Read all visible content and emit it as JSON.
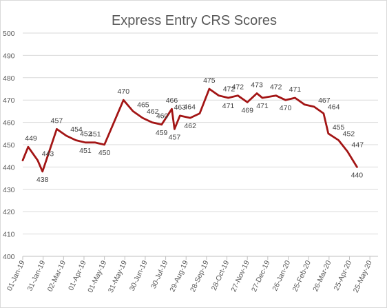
{
  "chart_data": {
    "type": "line",
    "title": "Express Entry CRS Scores",
    "xlabel": "",
    "ylabel": "",
    "ylim": [
      400,
      500
    ],
    "yticks": [
      400,
      410,
      420,
      430,
      440,
      450,
      460,
      470,
      480,
      490,
      500
    ],
    "x_tick_labels": [
      "01-Jan-19",
      "31-Jan-19",
      "02-Mar-19",
      "01-Apr-19",
      "01-May-19",
      "31-May-19",
      "30-Jun-19",
      "30-Jul-19",
      "29-Aug-19",
      "28-Sep-19",
      "28-Oct-19",
      "27-Nov-19",
      "27-Dec-19",
      "26-Jan-20",
      "25-Feb-20",
      "26-Mar-20",
      "25-Apr-20",
      "25-May-20"
    ],
    "x_range": [
      "01-Jan-19",
      "06-Jun-20"
    ],
    "grid": true,
    "legend": "none",
    "series": [
      {
        "color": "#a31515",
        "points": [
          {
            "x": "01-Jan-19",
            "y": 443
          },
          {
            "x": "09-Jan-19",
            "y": 449,
            "label": "449"
          },
          {
            "x": "23-Jan-19",
            "y": 443,
            "label": "443"
          },
          {
            "x": "30-Jan-19",
            "y": 438,
            "label": "438"
          },
          {
            "x": "20-Feb-19",
            "y": 457,
            "label": "457"
          },
          {
            "x": "06-Mar-19",
            "y": 454,
            "label": "454"
          },
          {
            "x": "20-Mar-19",
            "y": 452,
            "label": "452"
          },
          {
            "x": "03-Apr-19",
            "y": 451,
            "label": "451"
          },
          {
            "x": "17-Apr-19",
            "y": 451,
            "label": "451"
          },
          {
            "x": "01-May-19",
            "y": 450,
            "label": "450"
          },
          {
            "x": "29-May-19",
            "y": 470,
            "label": "470"
          },
          {
            "x": "12-Jun-19",
            "y": 465,
            "label": "465"
          },
          {
            "x": "26-Jun-19",
            "y": 462,
            "label": "462"
          },
          {
            "x": "10-Jul-19",
            "y": 460,
            "label": "460"
          },
          {
            "x": "24-Jul-19",
            "y": 459,
            "label": "459"
          },
          {
            "x": "08-Aug-19",
            "y": 466,
            "label": "466"
          },
          {
            "x": "12-Aug-19",
            "y": 457,
            "label": "457"
          },
          {
            "x": "20-Aug-19",
            "y": 463,
            "label": "463"
          },
          {
            "x": "04-Sep-19",
            "y": 462,
            "label": "462"
          },
          {
            "x": "18-Sep-19",
            "y": 464,
            "label": "464"
          },
          {
            "x": "02-Oct-19",
            "y": 475,
            "label": "475"
          },
          {
            "x": "16-Oct-19",
            "y": 472,
            "label": "472"
          },
          {
            "x": "30-Oct-19",
            "y": 471,
            "label": "471"
          },
          {
            "x": "13-Nov-19",
            "y": 472,
            "label": "472"
          },
          {
            "x": "27-Nov-19",
            "y": 469,
            "label": "469"
          },
          {
            "x": "11-Dec-19",
            "y": 473,
            "label": "473"
          },
          {
            "x": "19-Dec-19",
            "y": 471,
            "label": "471"
          },
          {
            "x": "08-Jan-20",
            "y": 472,
            "label": "472"
          },
          {
            "x": "22-Jan-20",
            "y": 470,
            "label": "470"
          },
          {
            "x": "05-Feb-20",
            "y": 471,
            "label": "471"
          },
          {
            "x": "19-Feb-20",
            "y": 468
          },
          {
            "x": "04-Mar-20",
            "y": 467,
            "label": "467"
          },
          {
            "x": "18-Mar-20",
            "y": 464,
            "label": "464"
          },
          {
            "x": "25-Mar-20",
            "y": 455,
            "label": "455"
          },
          {
            "x": "09-Apr-20",
            "y": 452,
            "label": "452"
          },
          {
            "x": "22-Apr-20",
            "y": 447,
            "label": "447"
          },
          {
            "x": "06-May-20",
            "y": 440,
            "label": "440"
          }
        ]
      }
    ]
  }
}
